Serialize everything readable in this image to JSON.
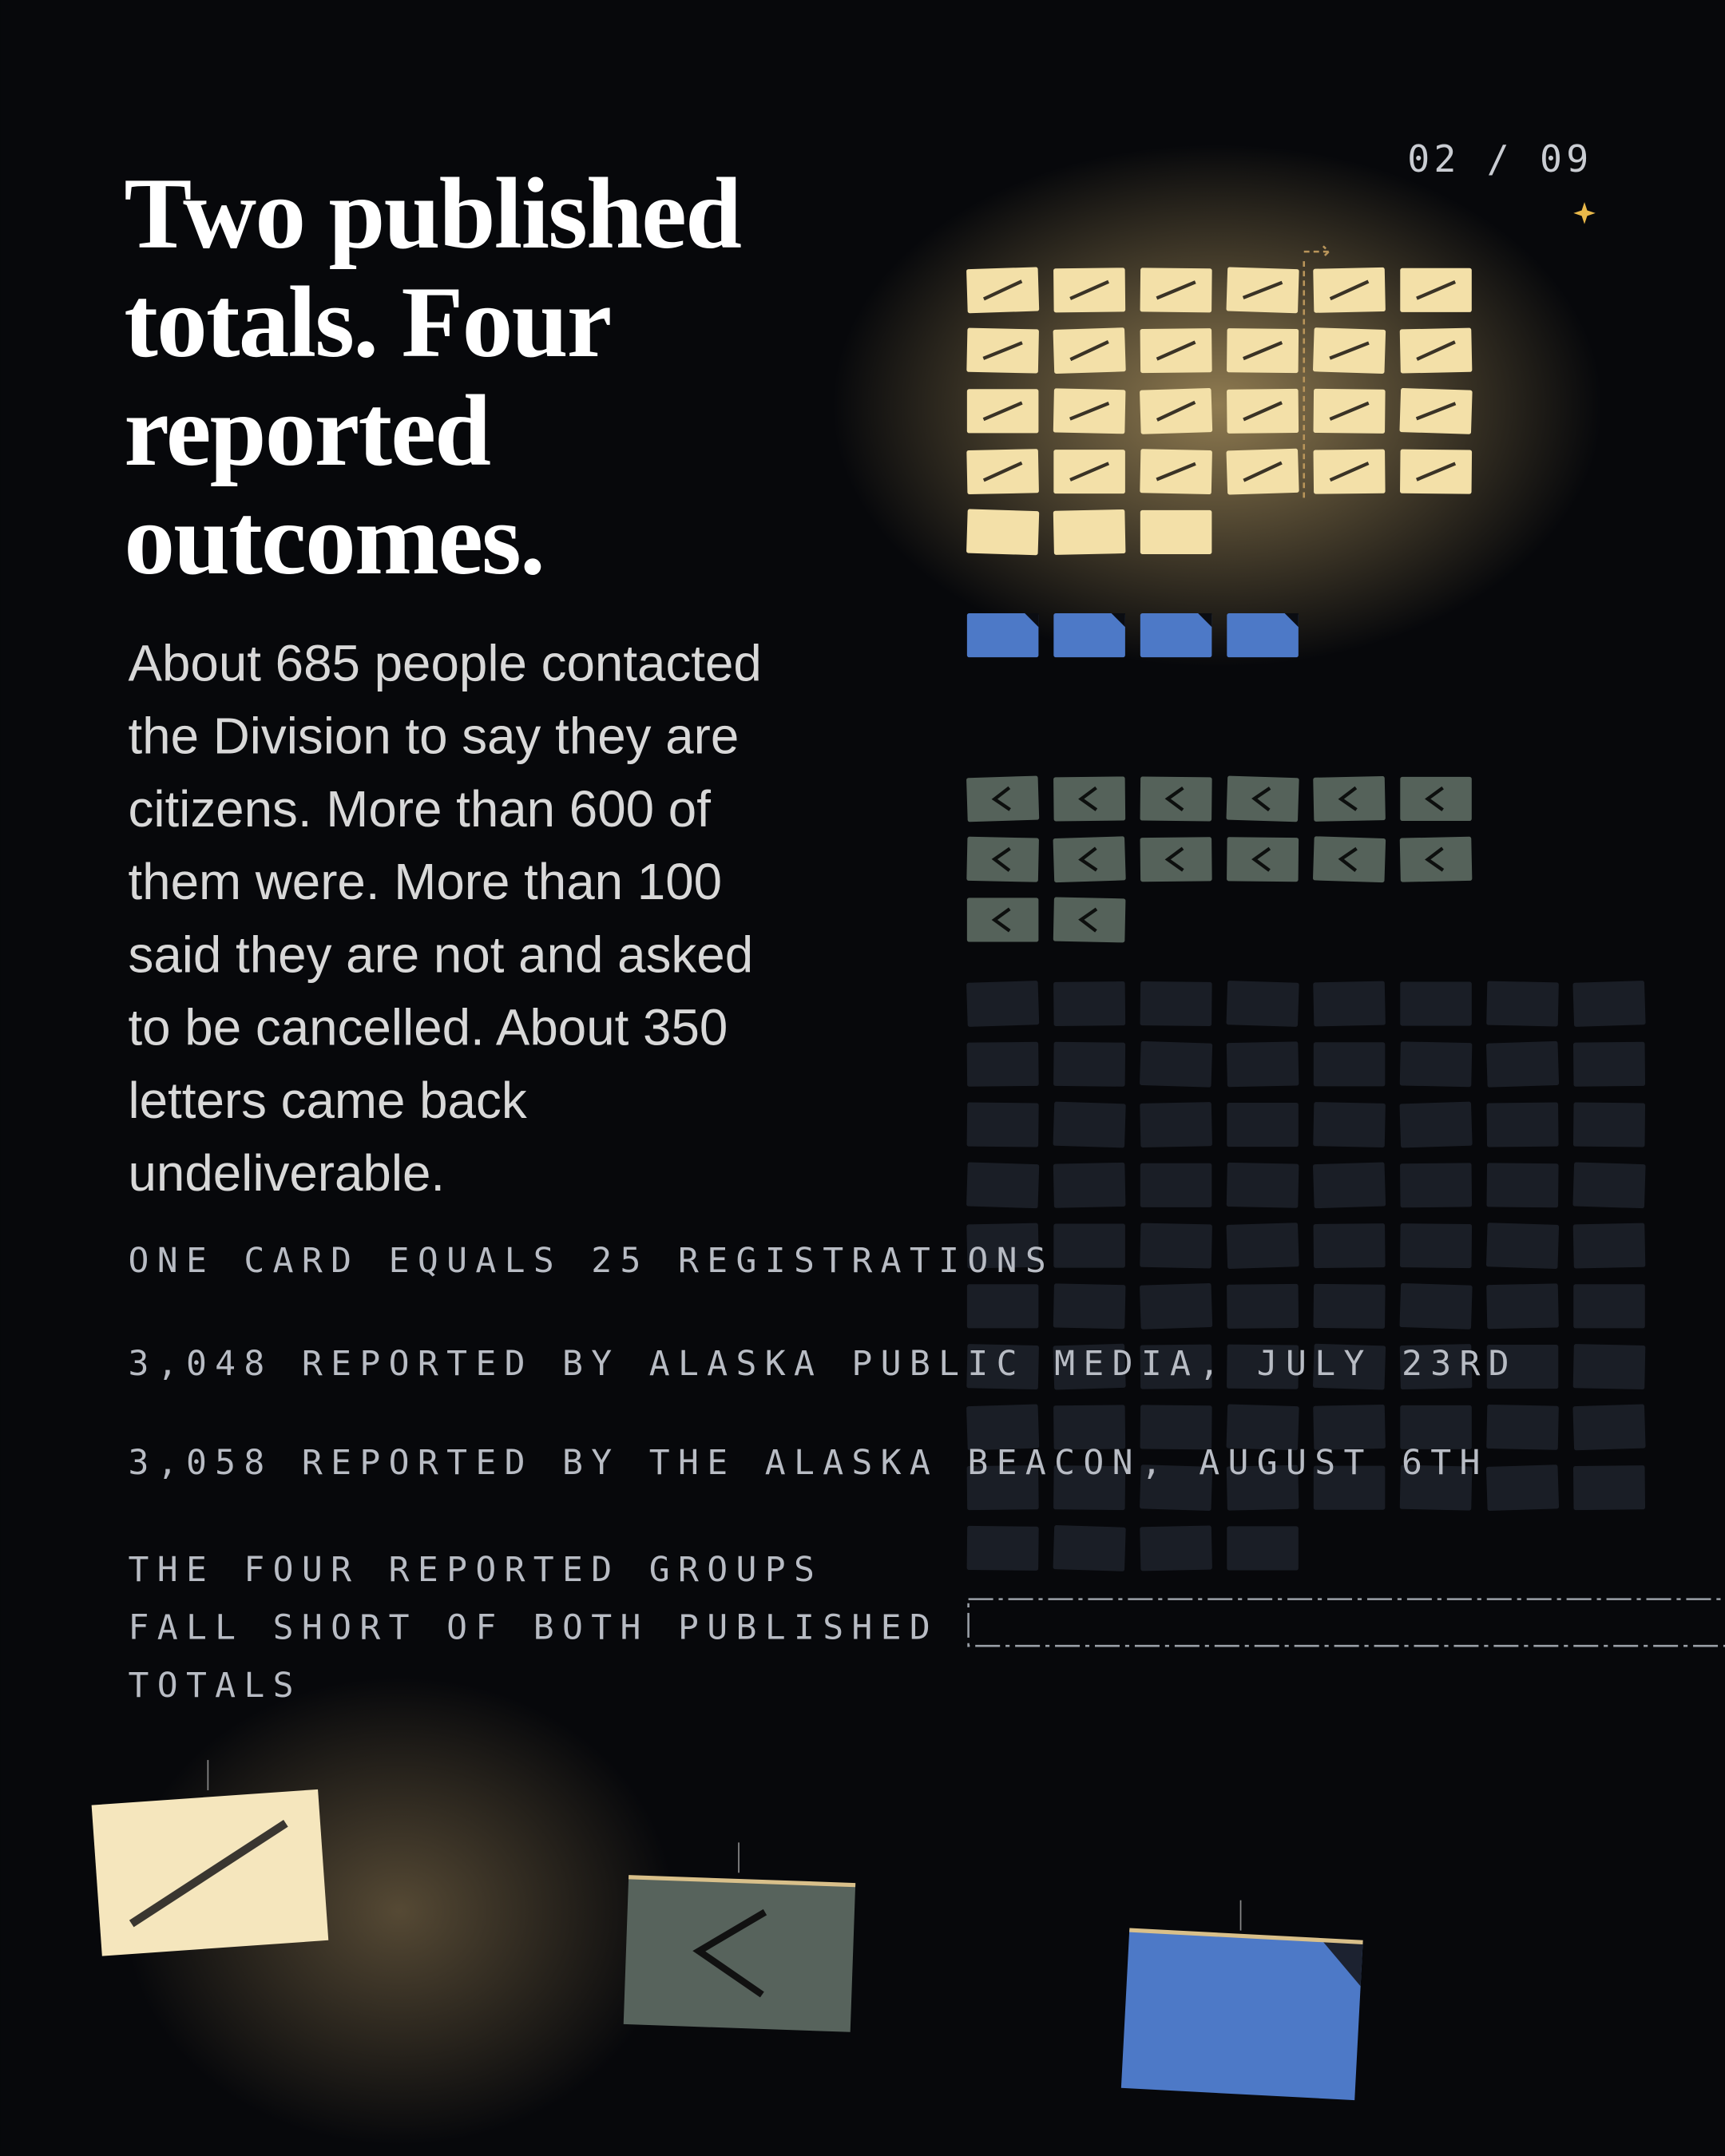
{
  "header": {
    "counter": "02 / 09",
    "title_lines": [
      "Two published",
      "totals. Four",
      "reported",
      "outcomes."
    ]
  },
  "body_lines": [
    "About 685 people contacted",
    "the Division to say they are",
    "citizens. More than 600 of",
    "them were. More than 100",
    "said they are not and asked",
    "to be cancelled. About 350",
    "letters came back",
    "undeliverable."
  ],
  "notes": [
    "ONE CARD EQUALS 25 REGISTRATIONS",
    "3,048 REPORTED BY ALASKA PUBLIC MEDIA, JULY 23RD",
    "3,058 REPORTED BY THE ALASKA BEACON, AUGUST 6TH"
  ],
  "conclusion_lines": [
    "THE FOUR REPORTED GROUPS",
    "FALL SHORT OF BOTH PUBLISHED",
    "TOTALS"
  ]
}
